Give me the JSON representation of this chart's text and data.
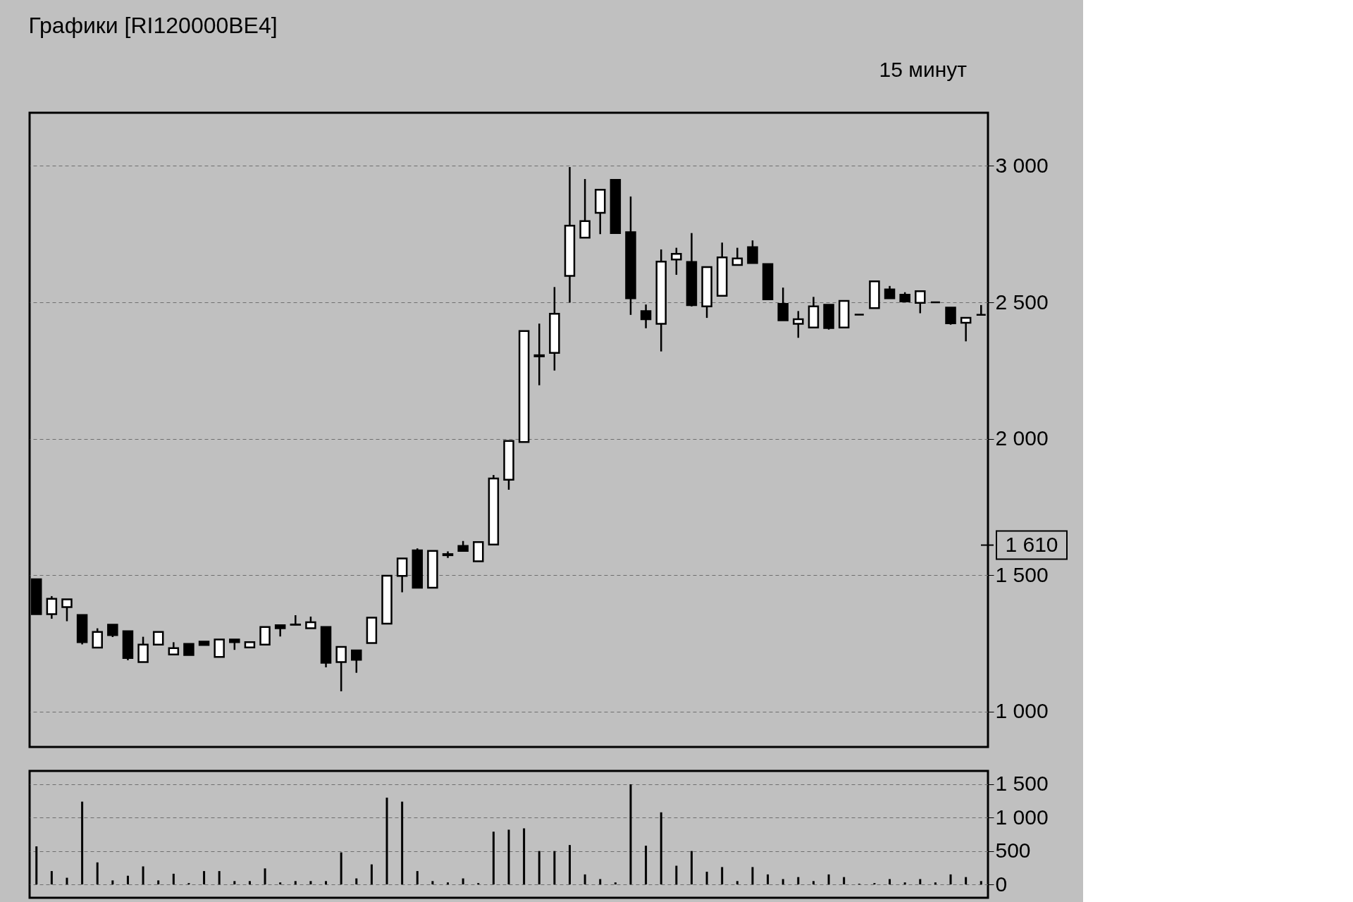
{
  "chart_data": [
    {
      "type": "candlestick",
      "title": "Графики [RI120000BE4]",
      "annotations": [
        "15 минут"
      ],
      "categories": [
        null,
        null,
        null,
        null,
        null,
        null,
        null,
        null,
        null,
        null,
        null,
        null,
        null,
        null,
        null,
        null,
        null,
        null,
        null,
        null,
        null,
        null,
        null,
        null,
        null,
        null,
        null,
        null,
        null,
        null,
        null,
        null,
        null,
        null,
        null,
        null,
        null,
        null,
        null,
        null,
        null,
        null,
        null,
        null,
        null,
        null,
        null,
        null,
        null,
        null,
        null,
        null,
        null,
        null,
        null,
        null,
        null,
        null,
        null,
        null,
        null,
        null,
        null
      ],
      "ohlc": [
        [
          1485,
          1485,
          1357,
          1357
        ],
        [
          1357,
          1423,
          1340,
          1413
        ],
        [
          1383,
          1411,
          1331,
          1411
        ],
        [
          1354,
          1354,
          1246,
          1254
        ],
        [
          1234,
          1305,
          1234,
          1292
        ],
        [
          1318,
          1318,
          1273,
          1280
        ],
        [
          1294,
          1294,
          1188,
          1196
        ],
        [
          1181,
          1274,
          1181,
          1245
        ],
        [
          1245,
          1292,
          1245,
          1292
        ],
        [
          1209,
          1254,
          1209,
          1232
        ],
        [
          1248,
          1248,
          1207,
          1207
        ],
        [
          1256,
          1256,
          1244,
          1244
        ],
        [
          1200,
          1264,
          1200,
          1264
        ],
        [
          1264,
          1264,
          1226,
          1254
        ],
        [
          1235,
          1254,
          1235,
          1254
        ],
        [
          1245,
          1310,
          1245,
          1310
        ],
        [
          1316,
          1316,
          1275,
          1305
        ],
        [
          1319,
          1353,
          1318,
          1318
        ],
        [
          1305,
          1348,
          1305,
          1327
        ],
        [
          1310,
          1310,
          1162,
          1179
        ],
        [
          1181,
          1237,
          1074,
          1237
        ],
        [
          1224,
          1224,
          1142,
          1190
        ],
        [
          1251,
          1344,
          1251,
          1344
        ],
        [
          1322,
          1498,
          1322,
          1498
        ],
        [
          1497,
          1561,
          1437,
          1561
        ],
        [
          1591,
          1598,
          1454,
          1454
        ],
        [
          1454,
          1589,
          1454,
          1589
        ],
        [
          1577,
          1587,
          1563,
          1573
        ],
        [
          1607,
          1625,
          1589,
          1589
        ],
        [
          1551,
          1621,
          1551,
          1621
        ],
        [
          1612,
          1867,
          1612,
          1854
        ],
        [
          1850,
          1992,
          1813,
          1992
        ],
        [
          1988,
          2395,
          1988,
          2395
        ],
        [
          2306,
          2422,
          2196,
          2302
        ],
        [
          2315,
          2556,
          2250,
          2458
        ],
        [
          2597,
          2996,
          2499,
          2781
        ],
        [
          2737,
          2952,
          2737,
          2798
        ],
        [
          2828,
          2913,
          2750,
          2913
        ],
        [
          2949,
          2949,
          2754,
          2754
        ],
        [
          2757,
          2888,
          2454,
          2515
        ],
        [
          2468,
          2492,
          2405,
          2438
        ],
        [
          2421,
          2694,
          2320,
          2649
        ],
        [
          2657,
          2700,
          2601,
          2678
        ],
        [
          2648,
          2754,
          2485,
          2490
        ],
        [
          2485,
          2629,
          2443,
          2629
        ],
        [
          2524,
          2719,
          2524,
          2665
        ],
        [
          2637,
          2700,
          2637,
          2661
        ],
        [
          2702,
          2727,
          2644,
          2644
        ],
        [
          2640,
          2640,
          2511,
          2511
        ],
        [
          2494,
          2554,
          2434,
          2434
        ],
        [
          2421,
          2468,
          2370,
          2438
        ],
        [
          2408,
          2520,
          2408,
          2485
        ],
        [
          2491,
          2491,
          2400,
          2406
        ],
        [
          2408,
          2505,
          2408,
          2505
        ],
        [
          2455,
          2455,
          2455,
          2455
        ],
        [
          2479,
          2577,
          2479,
          2577
        ],
        [
          2547,
          2560,
          2515,
          2515
        ],
        [
          2528,
          2537,
          2503,
          2503
        ],
        [
          2498,
          2541,
          2460,
          2541
        ],
        [
          2500,
          2500,
          2500,
          2500
        ],
        [
          2481,
          2481,
          2418,
          2423
        ],
        [
          2425,
          2443,
          2357,
          2443
        ],
        [
          2454,
          2490,
          2454,
          2454
        ]
      ],
      "colors": [
        "#000000",
        "#ffffff",
        "#ffffff",
        "#000000",
        "#ffffff",
        "#000000",
        "#000000",
        "#ffffff",
        "#ffffff",
        "#ffffff",
        "#000000",
        "#000000",
        "#ffffff",
        "#000000",
        "#ffffff",
        "#ffffff",
        "#000000",
        "#000000",
        "#ffffff",
        "#000000",
        "#ffffff",
        "#000000",
        "#ffffff",
        "#ffffff",
        "#ffffff",
        "#000000",
        "#ffffff",
        "#000000",
        "#000000",
        "#ffffff",
        "#ffffff",
        "#ffffff",
        "#ffffff",
        "#000000",
        "#ffffff",
        "#ffffff",
        "#ffffff",
        "#ffffff",
        "#000000",
        "#000000",
        "#000000",
        "#ffffff",
        "#ffffff",
        "#000000",
        "#ffffff",
        "#ffffff",
        "#ffffff",
        "#000000",
        "#000000",
        "#000000",
        "#ffffff",
        "#ffffff",
        "#000000",
        "#ffffff",
        "#000000",
        "#ffffff",
        "#000000",
        "#000000",
        "#ffffff",
        "#000000",
        "#000000",
        "#ffffff",
        "#000000"
      ],
      "ylim": [
        870,
        3195
      ],
      "yticks": [
        {
          "value": 1000,
          "label": "1 000"
        },
        {
          "value": 1500,
          "label": "1 500"
        },
        {
          "value": 2000,
          "label": "2 000"
        },
        {
          "value": 2500,
          "label": "2 500"
        },
        {
          "value": 3000,
          "label": "3 000"
        }
      ],
      "ref_lines": [
        {
          "axis": "y",
          "value": 1610,
          "label": "1 610"
        }
      ],
      "grid": "y",
      "tick_labels": "y",
      "legend": false
    },
    {
      "type": "bar",
      "categories": [
        null,
        null,
        null,
        null,
        null,
        null,
        null,
        null,
        null,
        null,
        null,
        null,
        null,
        null,
        null,
        null,
        null,
        null,
        null,
        null,
        null,
        null,
        null,
        null,
        null,
        null,
        null,
        null,
        null,
        null,
        null,
        null,
        null,
        null,
        null,
        null,
        null,
        null,
        null,
        null,
        null,
        null,
        null,
        null,
        null,
        null,
        null,
        null,
        null,
        null,
        null,
        null,
        null,
        null,
        null,
        null,
        null,
        null,
        null,
        null,
        null,
        null,
        null
      ],
      "series": [
        {
          "color": "#000000",
          "values": [
            570,
            200,
            100,
            1240,
            330,
            60,
            130,
            270,
            60,
            160,
            20,
            200,
            200,
            50,
            50,
            240,
            30,
            50,
            50,
            50,
            480,
            90,
            300,
            1300,
            1240,
            200,
            50,
            30,
            90,
            20,
            790,
            820,
            840,
            500,
            500,
            590,
            150,
            80,
            30,
            1500,
            580,
            1080,
            280,
            500,
            190,
            260,
            50,
            260,
            150,
            80,
            110,
            50,
            150,
            110,
            10,
            20,
            80,
            30,
            80,
            30,
            150,
            110,
            50
          ]
        }
      ],
      "ylim": [
        -200,
        1700
      ],
      "yticks": [
        0,
        500,
        {
          "value": 1000,
          "label": "1 000"
        },
        {
          "value": 1500,
          "label": "1 500"
        }
      ],
      "grid": "y",
      "tick_labels": "y",
      "legend": false
    }
  ]
}
